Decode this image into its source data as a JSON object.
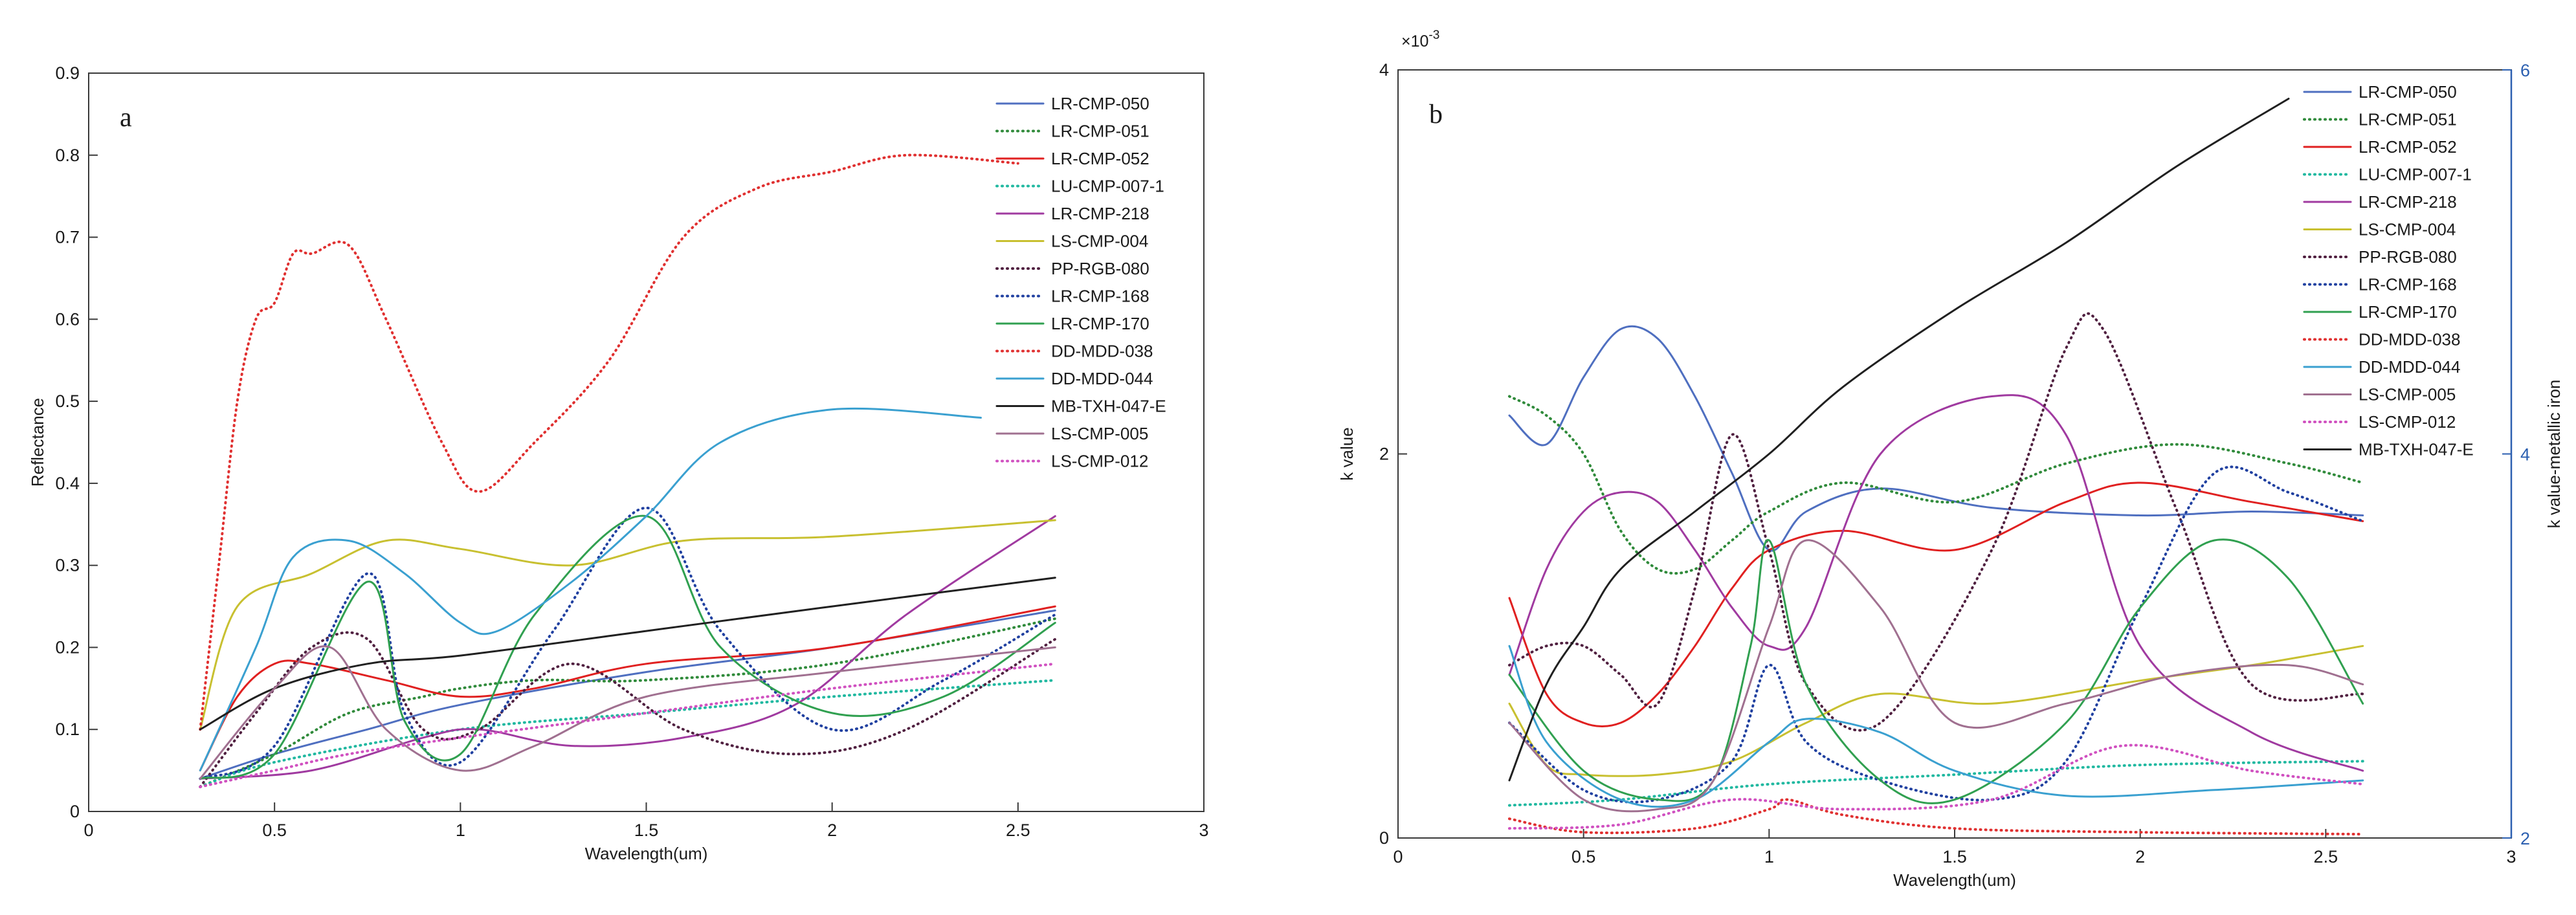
{
  "chart_data": [
    {
      "type": "line",
      "panel_label": "a",
      "title": "",
      "xlabel": "Wavelength(um)",
      "ylabel": "Reflectance",
      "xlim": [
        0,
        3
      ],
      "ylim": [
        0,
        0.9
      ],
      "xticks": [
        "0",
        "0.5",
        "1",
        "1.5",
        "2",
        "2.5",
        "3"
      ],
      "yticks": [
        "0",
        "0.1",
        "0.2",
        "0.3",
        "0.4",
        "0.5",
        "0.6",
        "0.7",
        "0.8",
        "0.9"
      ],
      "legend_position": "top-right",
      "series": [
        {
          "name": "LR-CMP-050",
          "color": "#4f6fc0",
          "dash": "solid",
          "x": [
            0.3,
            0.5,
            0.75,
            1.0,
            1.5,
            2.0,
            2.6
          ],
          "values": [
            0.04,
            0.07,
            0.1,
            0.13,
            0.17,
            0.2,
            0.245
          ]
        },
        {
          "name": "LR-CMP-051",
          "color": "#2f8a3a",
          "dash": "dot",
          "x": [
            0.3,
            0.5,
            0.7,
            0.9,
            1.0,
            1.2,
            1.5,
            2.0,
            2.6
          ],
          "values": [
            0.03,
            0.07,
            0.12,
            0.14,
            0.15,
            0.16,
            0.16,
            0.18,
            0.235
          ]
        },
        {
          "name": "LR-CMP-052",
          "color": "#e02020",
          "dash": "solid",
          "x": [
            0.3,
            0.4,
            0.5,
            0.6,
            0.8,
            1.0,
            1.2,
            1.5,
            2.0,
            2.6
          ],
          "values": [
            0.05,
            0.14,
            0.18,
            0.18,
            0.16,
            0.14,
            0.15,
            0.18,
            0.2,
            0.25
          ]
        },
        {
          "name": "LU-CMP-007-1",
          "color": "#20b8a0",
          "dash": "dot",
          "x": [
            0.3,
            0.5,
            1.0,
            1.5,
            2.0,
            2.6
          ],
          "values": [
            0.03,
            0.06,
            0.1,
            0.12,
            0.14,
            0.16
          ]
        },
        {
          "name": "LR-CMP-218",
          "color": "#a03aa0",
          "dash": "solid",
          "x": [
            0.3,
            0.6,
            0.9,
            1.05,
            1.3,
            1.6,
            1.9,
            2.2,
            2.6
          ],
          "values": [
            0.04,
            0.05,
            0.09,
            0.1,
            0.08,
            0.09,
            0.13,
            0.24,
            0.36
          ]
        },
        {
          "name": "LS-CMP-004",
          "color": "#c8c030",
          "dash": "solid",
          "x": [
            0.3,
            0.4,
            0.6,
            0.8,
            1.0,
            1.3,
            1.6,
            2.0,
            2.6
          ],
          "values": [
            0.1,
            0.25,
            0.29,
            0.33,
            0.32,
            0.3,
            0.33,
            0.335,
            0.355
          ]
        },
        {
          "name": "PP-RGB-080",
          "color": "#502040",
          "dash": "dot",
          "x": [
            0.3,
            0.45,
            0.6,
            0.75,
            0.9,
            1.05,
            1.3,
            1.6,
            1.9,
            2.2,
            2.6
          ],
          "values": [
            0.03,
            0.12,
            0.2,
            0.21,
            0.1,
            0.1,
            0.18,
            0.1,
            0.07,
            0.1,
            0.21
          ]
        },
        {
          "name": "LR-CMP-168",
          "color": "#2040a0",
          "dash": "dot",
          "x": [
            0.3,
            0.5,
            0.75,
            0.85,
            1.0,
            1.25,
            1.5,
            1.7,
            2.0,
            2.3,
            2.6
          ],
          "values": [
            0.04,
            0.08,
            0.29,
            0.12,
            0.06,
            0.22,
            0.37,
            0.22,
            0.1,
            0.16,
            0.24
          ]
        },
        {
          "name": "LR-CMP-170",
          "color": "#30a050",
          "dash": "solid",
          "x": [
            0.3,
            0.5,
            0.75,
            0.85,
            1.0,
            1.2,
            1.5,
            1.7,
            2.0,
            2.3,
            2.6
          ],
          "values": [
            0.04,
            0.07,
            0.28,
            0.11,
            0.07,
            0.24,
            0.36,
            0.2,
            0.12,
            0.14,
            0.23
          ]
        },
        {
          "name": "DD-MDD-038",
          "color": "#e03030",
          "dash": "dot",
          "x": [
            0.3,
            0.35,
            0.4,
            0.45,
            0.5,
            0.55,
            0.6,
            0.7,
            0.8,
            0.95,
            1.05,
            1.2,
            1.4,
            1.6,
            1.8,
            2.0,
            2.2,
            2.5
          ],
          "values": [
            0.1,
            0.3,
            0.5,
            0.6,
            0.62,
            0.68,
            0.68,
            0.69,
            0.6,
            0.45,
            0.39,
            0.45,
            0.55,
            0.7,
            0.76,
            0.78,
            0.8,
            0.79
          ]
        },
        {
          "name": "DD-MDD-044",
          "color": "#3aa0d0",
          "dash": "solid",
          "x": [
            0.3,
            0.45,
            0.55,
            0.7,
            0.85,
            1.0,
            1.1,
            1.3,
            1.5,
            1.7,
            2.0,
            2.4
          ],
          "values": [
            0.05,
            0.2,
            0.31,
            0.33,
            0.29,
            0.23,
            0.22,
            0.28,
            0.36,
            0.45,
            0.49,
            0.48
          ]
        },
        {
          "name": "MB-TXH-047-E",
          "color": "#202020",
          "dash": "solid",
          "x": [
            0.3,
            0.5,
            0.75,
            1.0,
            1.5,
            2.0,
            2.6
          ],
          "values": [
            0.1,
            0.15,
            0.18,
            0.19,
            0.22,
            0.25,
            0.285
          ]
        },
        {
          "name": "LS-CMP-005",
          "color": "#a07090",
          "dash": "solid",
          "x": [
            0.3,
            0.5,
            0.65,
            0.8,
            1.0,
            1.2,
            1.5,
            2.0,
            2.6
          ],
          "values": [
            0.04,
            0.15,
            0.2,
            0.1,
            0.05,
            0.08,
            0.14,
            0.17,
            0.2
          ]
        },
        {
          "name": "LS-CMP-012",
          "color": "#d050c0",
          "dash": "dot",
          "x": [
            0.3,
            0.5,
            0.7,
            1.0,
            1.5,
            2.0,
            2.6
          ],
          "values": [
            0.03,
            0.05,
            0.07,
            0.09,
            0.12,
            0.15,
            0.18
          ]
        }
      ]
    },
    {
      "type": "line",
      "panel_label": "b",
      "title": "",
      "xlabel": "Wavelength(um)",
      "ylabel": "k value",
      "y2label": "k value-metallic iron",
      "exponent_label": "×10",
      "exponent_power": "-3",
      "xlim": [
        0,
        3
      ],
      "ylim": [
        0,
        4
      ],
      "y2lim": [
        2,
        6
      ],
      "xticks": [
        "0",
        "0.5",
        "1",
        "1.5",
        "2",
        "2.5",
        "3"
      ],
      "yticks": [
        "0",
        "2",
        "4"
      ],
      "y2ticks": [
        "2",
        "4",
        "6"
      ],
      "legend_position": "top-right",
      "series": [
        {
          "name": "LR-CMP-050",
          "color": "#4f6fc0",
          "dash": "solid",
          "axis": "left",
          "x": [
            0.3,
            0.4,
            0.5,
            0.6,
            0.7,
            0.8,
            0.9,
            1.0,
            1.1,
            1.3,
            1.6,
            2.0,
            2.3,
            2.6
          ],
          "values": [
            2.2,
            2.05,
            2.4,
            2.65,
            2.6,
            2.3,
            1.9,
            1.5,
            1.7,
            1.82,
            1.72,
            1.68,
            1.7,
            1.68
          ]
        },
        {
          "name": "LR-CMP-051",
          "color": "#2f8a3a",
          "dash": "dot",
          "axis": "left",
          "x": [
            0.3,
            0.4,
            0.5,
            0.6,
            0.7,
            0.8,
            0.9,
            1.0,
            1.2,
            1.5,
            1.8,
            2.1,
            2.4,
            2.6
          ],
          "values": [
            2.3,
            2.2,
            2.0,
            1.6,
            1.4,
            1.4,
            1.55,
            1.7,
            1.85,
            1.75,
            1.95,
            2.05,
            1.95,
            1.85
          ]
        },
        {
          "name": "LR-CMP-052",
          "color": "#e02020",
          "dash": "solid",
          "axis": "left",
          "x": [
            0.3,
            0.4,
            0.5,
            0.6,
            0.7,
            0.8,
            0.9,
            1.0,
            1.2,
            1.5,
            1.8,
            2.0,
            2.3,
            2.6
          ],
          "values": [
            1.25,
            0.75,
            0.6,
            0.6,
            0.75,
            1.0,
            1.3,
            1.5,
            1.6,
            1.5,
            1.75,
            1.85,
            1.75,
            1.65
          ]
        },
        {
          "name": "LU-CMP-007-1",
          "color": "#20b8a0",
          "dash": "dot",
          "axis": "left",
          "x": [
            0.3,
            0.6,
            1.0,
            1.5,
            2.0,
            2.6
          ],
          "values": [
            0.17,
            0.2,
            0.28,
            0.33,
            0.38,
            0.4
          ]
        },
        {
          "name": "LR-CMP-218",
          "color": "#a03aa0",
          "dash": "solid",
          "axis": "left",
          "x": [
            0.3,
            0.4,
            0.5,
            0.6,
            0.7,
            0.8,
            0.9,
            1.0,
            1.1,
            1.3,
            1.6,
            1.8,
            2.0,
            2.3,
            2.6
          ],
          "values": [
            0.85,
            1.4,
            1.7,
            1.8,
            1.75,
            1.5,
            1.2,
            1.0,
            1.1,
            2.0,
            2.3,
            2.1,
            1.0,
            0.55,
            0.35
          ]
        },
        {
          "name": "LS-CMP-004",
          "color": "#c8c030",
          "dash": "solid",
          "axis": "left",
          "x": [
            0.3,
            0.4,
            0.5,
            0.7,
            0.9,
            1.1,
            1.3,
            1.6,
            2.0,
            2.3,
            2.6
          ],
          "values": [
            0.7,
            0.38,
            0.33,
            0.33,
            0.4,
            0.6,
            0.75,
            0.7,
            0.82,
            0.9,
            1.0
          ]
        },
        {
          "name": "PP-RGB-080",
          "color": "#502040",
          "dash": "dot",
          "axis": "left",
          "x": [
            0.3,
            0.4,
            0.5,
            0.6,
            0.7,
            0.8,
            0.9,
            1.0,
            1.1,
            1.3,
            1.6,
            1.8,
            1.9,
            2.1,
            2.3,
            2.6
          ],
          "values": [
            0.9,
            1.0,
            1.0,
            0.85,
            0.7,
            1.3,
            2.1,
            1.5,
            0.8,
            0.6,
            1.5,
            2.55,
            2.65,
            1.7,
            0.8,
            0.75
          ]
        },
        {
          "name": "LR-CMP-168",
          "color": "#2040a0",
          "dash": "dot",
          "axis": "left",
          "x": [
            0.3,
            0.5,
            0.7,
            0.9,
            1.0,
            1.1,
            1.3,
            1.6,
            1.8,
            2.0,
            2.2,
            2.4,
            2.6
          ],
          "values": [
            0.6,
            0.25,
            0.2,
            0.4,
            0.9,
            0.5,
            0.3,
            0.2,
            0.4,
            1.2,
            1.9,
            1.8,
            1.65
          ]
        },
        {
          "name": "LR-CMP-170",
          "color": "#30a050",
          "dash": "solid",
          "axis": "left",
          "x": [
            0.3,
            0.5,
            0.7,
            0.85,
            0.95,
            1.0,
            1.1,
            1.3,
            1.5,
            1.8,
            2.0,
            2.2,
            2.4,
            2.6
          ],
          "values": [
            0.85,
            0.35,
            0.2,
            0.3,
            1.0,
            1.55,
            0.8,
            0.3,
            0.2,
            0.6,
            1.2,
            1.55,
            1.35,
            0.7
          ]
        },
        {
          "name": "DD-MDD-038",
          "color": "#e03030",
          "dash": "dot",
          "axis": "left",
          "x": [
            0.3,
            0.5,
            0.8,
            1.0,
            1.05,
            1.2,
            1.5,
            2.0,
            2.6
          ],
          "values": [
            0.1,
            0.03,
            0.05,
            0.15,
            0.2,
            0.12,
            0.05,
            0.03,
            0.02
          ]
        },
        {
          "name": "DD-MDD-044",
          "color": "#3aa0d0",
          "dash": "solid",
          "axis": "left",
          "x": [
            0.3,
            0.4,
            0.6,
            0.8,
            1.0,
            1.1,
            1.3,
            1.5,
            1.8,
            2.2,
            2.6
          ],
          "values": [
            1.0,
            0.5,
            0.2,
            0.2,
            0.5,
            0.62,
            0.55,
            0.35,
            0.22,
            0.25,
            0.3
          ]
        },
        {
          "name": "LS-CMP-005",
          "color": "#a07090",
          "dash": "solid",
          "axis": "left",
          "x": [
            0.3,
            0.5,
            0.7,
            0.85,
            1.0,
            1.1,
            1.3,
            1.5,
            1.8,
            2.1,
            2.4,
            2.6
          ],
          "values": [
            0.6,
            0.2,
            0.15,
            0.3,
            1.1,
            1.55,
            1.2,
            0.6,
            0.7,
            0.85,
            0.9,
            0.8
          ]
        },
        {
          "name": "LS-CMP-012",
          "color": "#d050c0",
          "dash": "dot",
          "axis": "left",
          "x": [
            0.3,
            0.6,
            0.9,
            1.2,
            1.6,
            1.95,
            2.3,
            2.6
          ],
          "values": [
            0.05,
            0.07,
            0.2,
            0.15,
            0.2,
            0.48,
            0.35,
            0.28
          ]
        },
        {
          "name": "MB-TXH-047-E",
          "color": "#202020",
          "dash": "solid",
          "axis": "right",
          "x": [
            0.3,
            0.4,
            0.5,
            0.6,
            0.8,
            1.0,
            1.2,
            1.5,
            1.8,
            2.1,
            2.4
          ],
          "values": [
            2.3,
            2.8,
            3.1,
            3.4,
            3.7,
            4.0,
            4.35,
            4.75,
            5.1,
            5.5,
            5.85
          ]
        }
      ]
    }
  ]
}
